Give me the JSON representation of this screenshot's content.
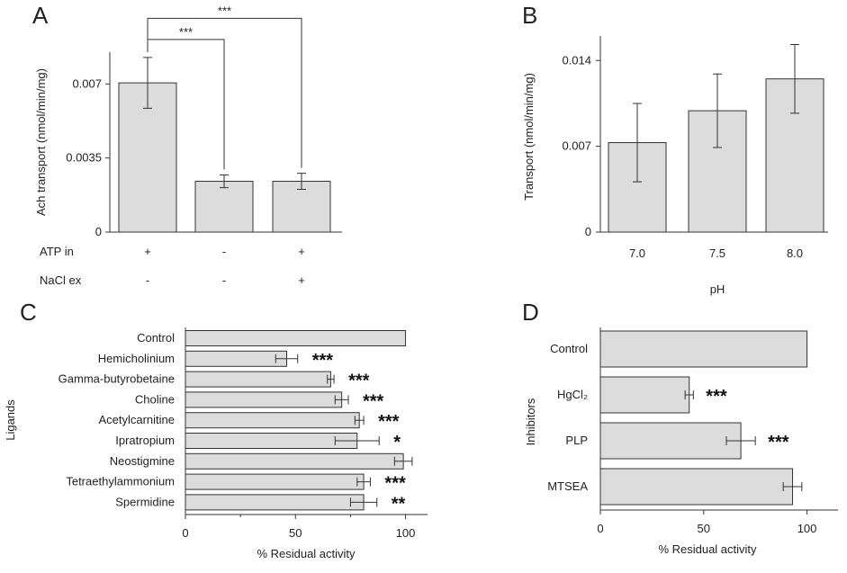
{
  "chart_data": [
    {
      "panel": "A",
      "type": "bar",
      "ylabel": "Ach transport (nmol/min/mg)",
      "ylim": [
        0,
        0.0085
      ],
      "yticks": [
        0,
        0.0035,
        0.007
      ],
      "ytick_labels": [
        "0",
        "0.0035",
        "0.007"
      ],
      "row_labels": [
        "ATP in",
        "NaCl ex"
      ],
      "conditions": [
        [
          "+",
          "-"
        ],
        [
          "-",
          "-"
        ],
        [
          "+",
          "+"
        ]
      ],
      "values": [
        0.00705,
        0.0024,
        0.0024
      ],
      "errors": [
        0.0012,
        0.0003,
        0.00038
      ],
      "brackets": [
        {
          "from": 0,
          "to": 1,
          "label": "***",
          "level": 0.0091
        },
        {
          "from": 0,
          "to": 2,
          "label": "***",
          "level": 0.0101
        }
      ]
    },
    {
      "panel": "B",
      "type": "bar",
      "ylabel": "Transport (nmol/min/mg)",
      "xlabel": "pH",
      "categories": [
        "7.0",
        "7.5",
        "8.0"
      ],
      "ylim": [
        0,
        0.016
      ],
      "yticks": [
        0,
        0.007,
        0.014
      ],
      "ytick_labels": [
        "0",
        "0.007",
        "0.014"
      ],
      "values": [
        0.0073,
        0.0099,
        0.0125
      ],
      "errors": [
        0.0032,
        0.003,
        0.0028
      ]
    },
    {
      "panel": "C",
      "type": "bar",
      "orientation": "horizontal",
      "ylabel": "Ligands",
      "xlabel": "% Residual activity",
      "xlim": [
        0,
        110
      ],
      "xticks": [
        0,
        50,
        100
      ],
      "xtick_labels": [
        "0",
        "50",
        "100"
      ],
      "categories": [
        "Control",
        "Hemicholinium",
        "Gamma-butyrobetaine",
        "Choline",
        "Acetylcarnitine",
        "Ipratropium",
        "Neostigmine",
        "Tetraethylammonium",
        "Spermidine"
      ],
      "values": [
        100,
        46,
        66,
        71,
        79,
        78,
        99,
        81,
        81
      ],
      "errors": [
        0,
        5,
        1.5,
        3,
        2,
        10,
        4,
        3,
        6
      ],
      "significance": [
        "",
        "***",
        "***",
        "***",
        "***",
        "*",
        "",
        "***",
        "**"
      ]
    },
    {
      "panel": "D",
      "type": "bar",
      "orientation": "horizontal",
      "ylabel": "Inhibitors",
      "xlabel": "% Residual activity",
      "xlim": [
        0,
        115
      ],
      "xticks": [
        0,
        50,
        100
      ],
      "xtick_labels": [
        "0",
        "50",
        "100"
      ],
      "categories": [
        "Control",
        "HgCl₂",
        "PLP",
        "MTSEA"
      ],
      "values": [
        100,
        43,
        68,
        93
      ],
      "errors": [
        0,
        2,
        7,
        4.5
      ],
      "significance": [
        "",
        "***",
        "***",
        ""
      ]
    }
  ]
}
